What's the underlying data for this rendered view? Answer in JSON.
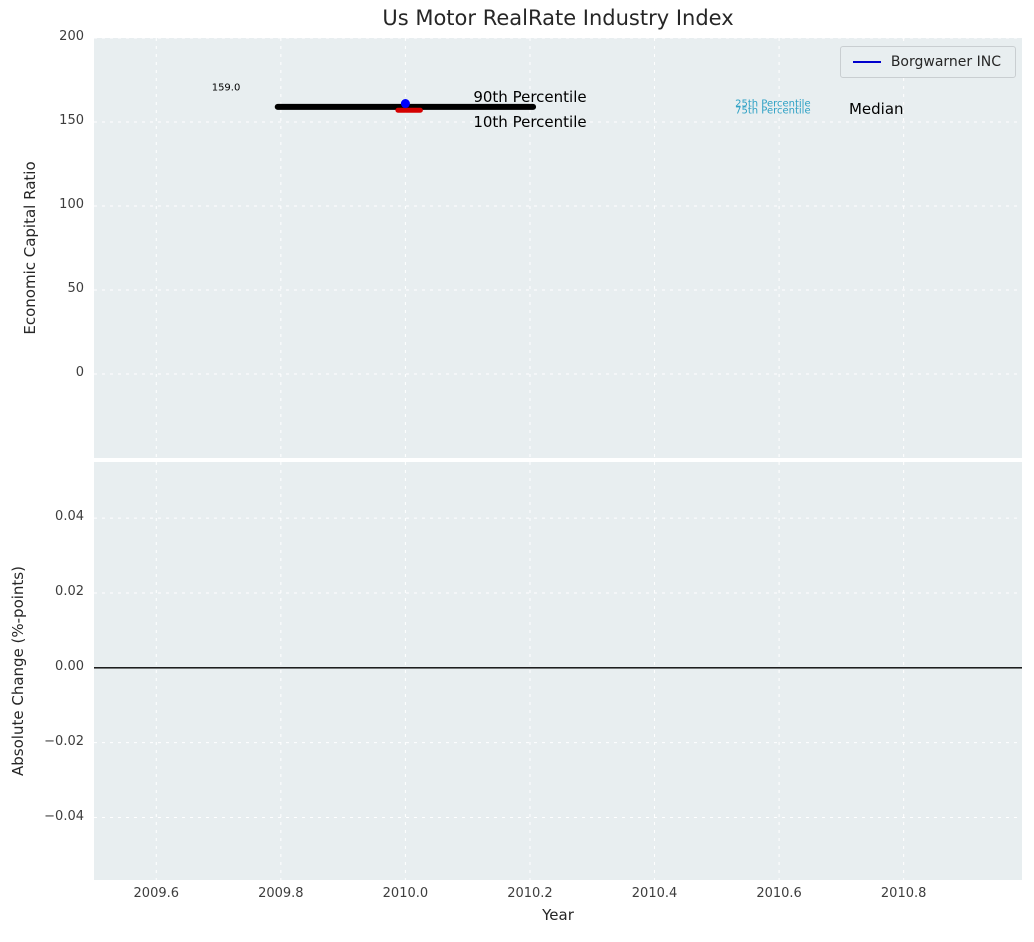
{
  "style": {
    "figure_bg": "#ffffff",
    "plot_bg": "#e8eef0",
    "grid_color": "#ffffff",
    "title_color": "#262626",
    "label_color": "#262626",
    "tick_color": "#3d3d3d",
    "legend_border": "#c9ced1"
  },
  "chart_data": [
    {
      "type": "line",
      "title": "Us Motor RealRate Industry Index",
      "xlabel": "Year",
      "ylabel": "Economic Capital Ratio",
      "xlim": [
        2009.5,
        2010.99
      ],
      "ylim": [
        -50,
        200
      ],
      "grid": true,
      "legend": {
        "position": "upper right",
        "entries": [
          {
            "label": "Borgwarner INC",
            "color": "#0000cd"
          }
        ]
      },
      "xticks": [
        {
          "v": 2009.6,
          "label": "2009.6"
        },
        {
          "v": 2009.8,
          "label": "2009.8"
        },
        {
          "v": 2010.0,
          "label": "2010.0"
        },
        {
          "v": 2010.2,
          "label": "2010.2"
        },
        {
          "v": 2010.4,
          "label": "2010.4"
        },
        {
          "v": 2010.6,
          "label": "2010.6"
        },
        {
          "v": 2010.8,
          "label": "2010.8"
        }
      ],
      "yticks": [
        {
          "v": 200,
          "label": "200"
        },
        {
          "v": 150,
          "label": "150"
        },
        {
          "v": 100,
          "label": "100"
        },
        {
          "v": 50,
          "label": "50"
        },
        {
          "v": 0,
          "label": "0"
        }
      ],
      "series": [
        {
          "id": "percentile-band",
          "name": "10th-90th percentile band",
          "type": "segment",
          "color": "#000000",
          "width": 6,
          "x": [
            2009.795,
            2010.205
          ],
          "y": [
            159,
            159
          ]
        },
        {
          "id": "median-marker",
          "name": "median marker",
          "type": "segment",
          "color": "#d40000",
          "width": 5,
          "x": [
            2009.988,
            2010.024
          ],
          "y": [
            157,
            157
          ]
        },
        {
          "id": "borgwarner-point",
          "name": "Borgwarner INC",
          "type": "point",
          "color": "#0000ff",
          "r": 4.5,
          "x": [
            2010.0
          ],
          "y": [
            161
          ]
        }
      ],
      "annotations": [
        {
          "text": "159.0",
          "x": 2009.712,
          "y": 170,
          "color": "#000000",
          "size": 10
        },
        {
          "text": "90th Percentile",
          "x": 2010.2,
          "y": 165,
          "color": "#000000",
          "size": 15
        },
        {
          "text": "10th Percentile",
          "x": 2010.2,
          "y": 150,
          "color": "#000000",
          "size": 15
        },
        {
          "text": "25th Percentile",
          "x": 2010.59,
          "y": 160.5,
          "color": "#2ca0c4",
          "size": 10
        },
        {
          "text": "75th Percentile",
          "x": 2010.59,
          "y": 156.5,
          "color": "#2ca0c4",
          "size": 10
        },
        {
          "text": "Median",
          "x": 2010.756,
          "y": 158,
          "color": "#000000",
          "size": 15
        }
      ]
    },
    {
      "type": "line",
      "title": "",
      "xlabel": "Year",
      "ylabel": "Absolute Change (%-points)",
      "xlim": [
        2009.5,
        2010.99
      ],
      "ylim": [
        -0.0567,
        0.055
      ],
      "grid": true,
      "xticks": [
        {
          "v": 2009.6,
          "label": "2009.6"
        },
        {
          "v": 2009.8,
          "label": "2009.8"
        },
        {
          "v": 2010.0,
          "label": "2010.0"
        },
        {
          "v": 2010.2,
          "label": "2010.2"
        },
        {
          "v": 2010.4,
          "label": "2010.4"
        },
        {
          "v": 2010.6,
          "label": "2010.6"
        },
        {
          "v": 2010.8,
          "label": "2010.8"
        }
      ],
      "yticks": [
        {
          "v": 0.04,
          "label": "0.04"
        },
        {
          "v": 0.02,
          "label": "0.02"
        },
        {
          "v": 0,
          "label": "0.00"
        },
        {
          "v": -0.02,
          "label": "−0.02"
        },
        {
          "v": -0.04,
          "label": "−0.04"
        }
      ],
      "series": [
        {
          "id": "zero-line",
          "name": "zero change line",
          "type": "hline",
          "color": "#000000",
          "width": 1.3,
          "y": [
            0
          ]
        }
      ],
      "annotations": []
    }
  ]
}
